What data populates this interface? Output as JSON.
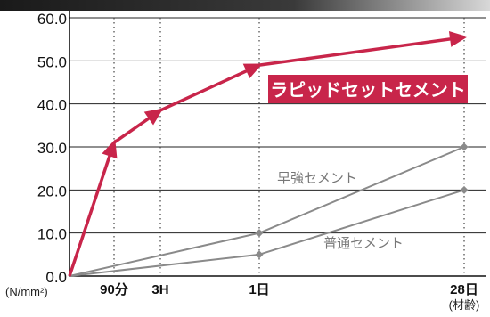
{
  "chart_data": {
    "type": "line",
    "title": "",
    "xlabel": "(材齢)",
    "ylabel": "(N/mm²)",
    "ylim": [
      0,
      60
    ],
    "yticks": [
      "0.0",
      "10.0",
      "20.0",
      "30.0",
      "40.0",
      "50.0",
      "60.0"
    ],
    "x_ticks": [
      "90分",
      "3H",
      "1日",
      "28日"
    ],
    "grid": true,
    "series": [
      {
        "name": "ラピッドセットセメント",
        "color": "#c8254a",
        "label_style": "box",
        "points": [
          {
            "x": "0",
            "y": 0
          },
          {
            "x": "90分",
            "y": 31
          },
          {
            "x": "3H",
            "y": 38.5
          },
          {
            "x": "1日",
            "y": 49
          },
          {
            "x": "28日",
            "y": 55.5
          }
        ]
      },
      {
        "name": "早強セメント",
        "color": "#8a8a8a",
        "label_style": "text",
        "points": [
          {
            "x": "0",
            "y": 0
          },
          {
            "x": "1日",
            "y": 10
          },
          {
            "x": "28日",
            "y": 30
          }
        ]
      },
      {
        "name": "普通セメント",
        "color": "#8a8a8a",
        "label_style": "text",
        "points": [
          {
            "x": "0",
            "y": 0
          },
          {
            "x": "1日",
            "y": 5
          },
          {
            "x": "28日",
            "y": 20
          }
        ]
      }
    ]
  }
}
